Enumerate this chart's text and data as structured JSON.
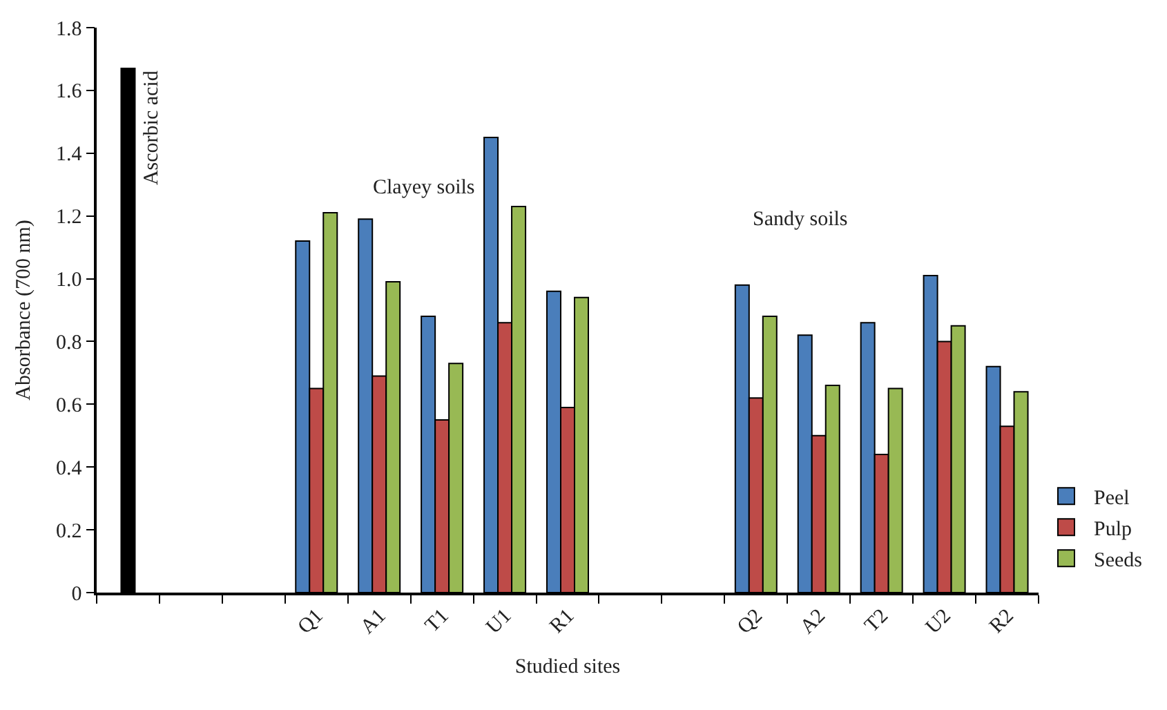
{
  "chart_data": {
    "type": "bar",
    "xlabel": "Studied sites",
    "ylabel": "Absorbance (700 nm)",
    "categories": [
      null,
      null,
      null,
      "Q1",
      "A1",
      "T1",
      "U1",
      "R1",
      null,
      null,
      "Q2",
      "A2",
      "T2",
      "U2",
      "R2"
    ],
    "series": [
      {
        "name": "Ascorbic acid",
        "color": "#000000",
        "values": [
          1.67,
          null,
          null,
          null,
          null,
          null,
          null,
          null,
          null,
          null,
          null,
          null,
          null,
          null,
          null
        ]
      },
      {
        "name": "Peel",
        "color": "#4a7ebb",
        "values": [
          null,
          null,
          null,
          1.12,
          1.19,
          0.88,
          1.45,
          0.96,
          null,
          null,
          0.98,
          0.82,
          0.86,
          1.01,
          0.72
        ]
      },
      {
        "name": "Pulp",
        "color": "#be4b48",
        "values": [
          null,
          null,
          null,
          0.65,
          0.69,
          0.55,
          0.86,
          0.59,
          null,
          null,
          0.62,
          0.5,
          0.44,
          0.8,
          0.53
        ]
      },
      {
        "name": "Seeds",
        "color": "#98b954",
        "values": [
          null,
          null,
          null,
          1.21,
          0.99,
          0.73,
          1.23,
          0.94,
          null,
          null,
          0.88,
          0.66,
          0.65,
          0.85,
          0.64
        ]
      }
    ],
    "annotations": [
      "Clayey soils",
      "Sandy soils"
    ],
    "ylim": [
      0,
      1.8
    ],
    "yticks": [
      0,
      0.2,
      0.4,
      0.6,
      0.8,
      {
        "value": 1,
        "label": "1.0"
      },
      1.2,
      1.4,
      1.6,
      1.8
    ],
    "legend": "bottom right"
  }
}
